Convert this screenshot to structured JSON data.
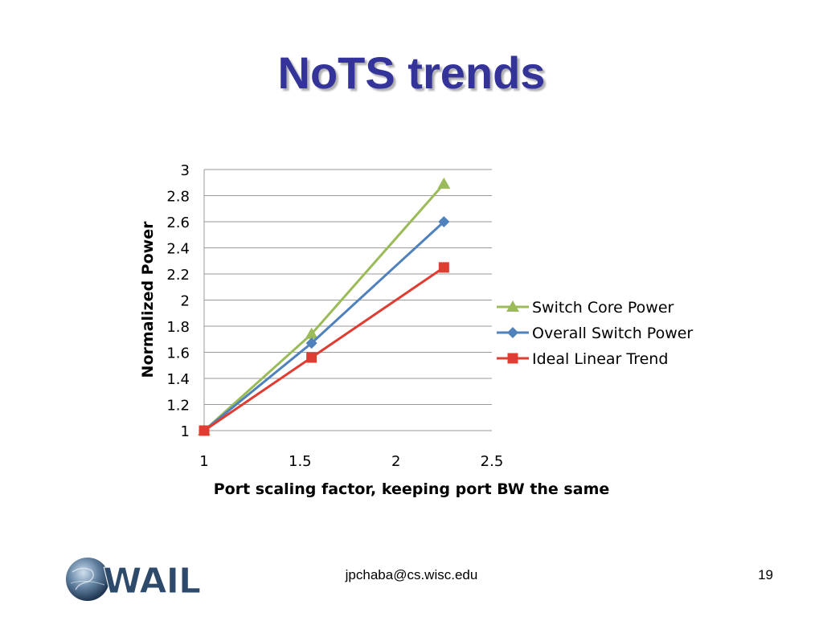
{
  "slide": {
    "title": "NoTS trends",
    "footer_email": "jpchaba@cs.wisc.edu",
    "page_number": "19",
    "logo_text": "WAIL"
  },
  "colors": {
    "title": "#333399",
    "switch_core": "#9BBB59",
    "overall": "#4F81BD",
    "ideal": "#E03C31",
    "grid": "#9a9a9a"
  },
  "chart_data": {
    "type": "line",
    "title": "",
    "xlabel": "Port scaling factor, keeping port BW the same",
    "ylabel": "Normalized Power",
    "xlim": [
      1,
      2.5
    ],
    "ylim": [
      1,
      3
    ],
    "x_ticks": [
      "1",
      "1.5",
      "2",
      "2.5"
    ],
    "y_ticks": [
      "1",
      "1.2",
      "1.4",
      "1.6",
      "1.8",
      "2",
      "2.2",
      "2.4",
      "2.6",
      "2.8",
      "3"
    ],
    "grid": "horizontal",
    "legend_position": "right",
    "series": [
      {
        "name": "Switch Core Power",
        "marker": "triangle",
        "color": "#9BBB59",
        "x": [
          1,
          1.56,
          2.25
        ],
        "y": [
          1,
          1.74,
          2.89
        ]
      },
      {
        "name": "Overall Switch Power",
        "marker": "diamond",
        "color": "#4F81BD",
        "x": [
          1,
          1.56,
          2.25
        ],
        "y": [
          1,
          1.67,
          2.6
        ]
      },
      {
        "name": "Ideal Linear Trend",
        "marker": "square",
        "color": "#E03C31",
        "x": [
          1,
          1.56,
          2.25
        ],
        "y": [
          1,
          1.56,
          2.25
        ]
      }
    ]
  }
}
